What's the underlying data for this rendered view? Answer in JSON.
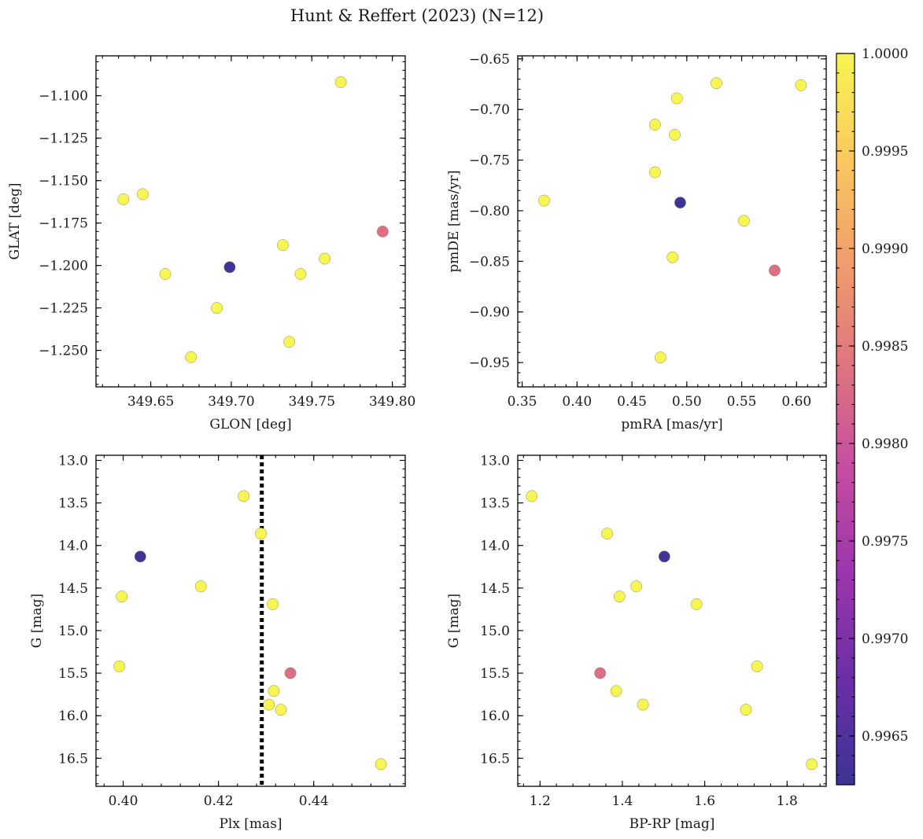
{
  "suptitle": "Hunt & Reffert (2023) (N=12)",
  "chart_data": [
    {
      "type": "scatter",
      "id": "sky",
      "xlabel": "GLON [deg]",
      "ylabel": "GLAT [deg]",
      "xlim": [
        349.616,
        349.808
      ],
      "ylim": [
        -1.2715,
        -1.0765
      ],
      "xticks": [
        349.65,
        349.7,
        349.75,
        349.8
      ],
      "xtick_labels": [
        "349.65",
        "349.70",
        "349.75",
        "349.80"
      ],
      "yticks": [
        -1.1,
        -1.125,
        -1.15,
        -1.175,
        -1.2,
        -1.225,
        -1.25
      ],
      "ytick_labels": [
        "−1.100",
        "−1.125",
        "−1.150",
        "−1.175",
        "−1.200",
        "−1.225",
        "−1.250"
      ],
      "x": [
        349.768,
        349.633,
        349.645,
        349.794,
        349.732,
        349.758,
        349.659,
        349.743,
        349.699,
        349.691,
        349.736,
        349.675
      ],
      "y": [
        -1.092,
        -1.161,
        -1.158,
        -1.18,
        -1.188,
        -1.196,
        -1.205,
        -1.205,
        -1.201,
        -1.225,
        -1.245,
        -1.254
      ],
      "c": [
        1.0,
        1.0,
        1.0,
        0.99834,
        1.0,
        1.0,
        1.0,
        1.0,
        0.99628,
        1.0,
        1.0,
        1.0
      ]
    },
    {
      "type": "scatter",
      "id": "pm",
      "xlabel": "pmRA [mas/yr]",
      "ylabel": "pmDE [mas/yr]",
      "xlim": [
        0.346,
        0.627
      ],
      "ylim": [
        -0.974,
        -0.647
      ],
      "xticks": [
        0.35,
        0.4,
        0.45,
        0.5,
        0.55,
        0.6
      ],
      "xtick_labels": [
        "0.35",
        "0.40",
        "0.45",
        "0.50",
        "0.55",
        "0.60"
      ],
      "yticks": [
        -0.65,
        -0.7,
        -0.75,
        -0.8,
        -0.85,
        -0.9,
        -0.95
      ],
      "ytick_labels": [
        "−0.65",
        "−0.70",
        "−0.75",
        "−0.80",
        "−0.85",
        "−0.90",
        "−0.95"
      ],
      "x": [
        0.527,
        0.604,
        0.491,
        0.471,
        0.489,
        0.471,
        0.37,
        0.494,
        0.552,
        0.487,
        0.58,
        0.476
      ],
      "y": [
        -0.674,
        -0.676,
        -0.689,
        -0.715,
        -0.725,
        -0.762,
        -0.79,
        -0.792,
        -0.81,
        -0.846,
        -0.859,
        -0.945
      ],
      "c": [
        1.0,
        1.0,
        1.0,
        1.0,
        1.0,
        1.0,
        1.0,
        0.99628,
        1.0,
        1.0,
        0.99834,
        1.0
      ]
    },
    {
      "type": "scatter",
      "id": "plx",
      "xlabel": "Plx [mas]",
      "ylabel": "G [mag]",
      "xlim": [
        0.3943,
        0.4592
      ],
      "ylim": [
        16.83,
        12.94
      ],
      "yinverted": true,
      "xticks": [
        0.4,
        0.42,
        0.44
      ],
      "xtick_labels": [
        "0.40",
        "0.42",
        "0.44"
      ],
      "yticks": [
        13.0,
        13.5,
        14.0,
        14.5,
        15.0,
        15.5,
        16.0,
        16.5
      ],
      "ytick_labels": [
        "13.0",
        "13.5",
        "14.0",
        "14.5",
        "15.0",
        "15.5",
        "16.0",
        "16.5"
      ],
      "vline_x": 0.4291,
      "x": [
        0.4253,
        0.4289,
        0.4036,
        0.4163,
        0.3997,
        0.4314,
        0.3992,
        0.4351,
        0.4316,
        0.4306,
        0.4331,
        0.4541
      ],
      "y": [
        13.42,
        13.86,
        14.13,
        14.48,
        14.6,
        14.69,
        15.42,
        15.5,
        15.71,
        15.87,
        15.93,
        16.57
      ],
      "c": [
        1.0,
        1.0,
        0.99628,
        1.0,
        1.0,
        1.0,
        1.0,
        0.99834,
        1.0,
        1.0,
        1.0,
        1.0
      ]
    },
    {
      "type": "scatter",
      "id": "cmd",
      "xlabel": "BP-RP [mag]",
      "ylabel": "G [mag]",
      "xlim": [
        1.146,
        1.895
      ],
      "ylim": [
        16.83,
        12.94
      ],
      "yinverted": true,
      "xticks": [
        1.2,
        1.4,
        1.6,
        1.8
      ],
      "xtick_labels": [
        "1.2",
        "1.4",
        "1.6",
        "1.8"
      ],
      "yticks": [
        13.0,
        13.5,
        14.0,
        14.5,
        15.0,
        15.5,
        16.0,
        16.5
      ],
      "ytick_labels": [
        "13.0",
        "13.5",
        "14.0",
        "14.5",
        "15.0",
        "15.5",
        "16.0",
        "16.5"
      ],
      "x": [
        1.18,
        1.363,
        1.502,
        1.434,
        1.393,
        1.58,
        1.727,
        1.346,
        1.385,
        1.45,
        1.7,
        1.86
      ],
      "y": [
        13.42,
        13.86,
        14.13,
        14.48,
        14.6,
        14.69,
        15.42,
        15.5,
        15.71,
        15.87,
        15.93,
        16.57
      ],
      "c": [
        1.0,
        1.0,
        0.99628,
        1.0,
        1.0,
        1.0,
        1.0,
        0.99834,
        1.0,
        1.0,
        1.0,
        1.0
      ]
    }
  ],
  "colorbar": {
    "colormap": "plasma",
    "range": [
      0.99625,
      1.0
    ],
    "ticks": [
      1.0,
      0.9995,
      0.999,
      0.9985,
      0.998,
      0.9975,
      0.997,
      0.9965
    ],
    "tick_labels": [
      "1.0000",
      "0.9995",
      "0.9990",
      "0.9985",
      "0.9980",
      "0.9975",
      "0.9970",
      "0.9965"
    ],
    "stops": [
      "#3c3494",
      "#6b2fa6",
      "#9a35ac",
      "#c44ca2",
      "#de7480",
      "#f09d6c",
      "#fbc95e",
      "#f6f552"
    ]
  }
}
